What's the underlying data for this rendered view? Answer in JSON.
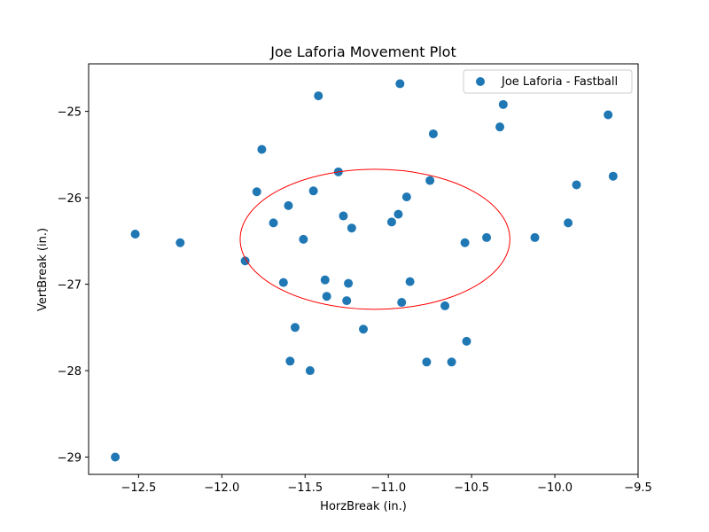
{
  "chart_data": {
    "type": "scatter",
    "title": "Joe Laforia Movement Plot",
    "xlabel": "HorzBreak (in.)",
    "ylabel": "VertBreak (in.)",
    "xlim": [
      -12.8,
      -9.5
    ],
    "ylim": [
      -29.2,
      -24.45
    ],
    "xticks": [
      -12.5,
      -12.0,
      -11.5,
      -11.0,
      -10.5,
      -10.0,
      -9.5
    ],
    "xtick_labels": [
      "−12.5",
      "−12.0",
      "−11.5",
      "−11.0",
      "−10.5",
      "−10.0",
      "−9.5"
    ],
    "yticks": [
      -29,
      -28,
      -27,
      -26,
      -25
    ],
    "ytick_labels": [
      "−29",
      "−28",
      "−27",
      "−26",
      "−25"
    ],
    "grid": false,
    "legend_position": "top-right",
    "series": [
      {
        "name": "Joe Laforia - Fastball",
        "color": "#1f77b4",
        "points": [
          [
            -12.64,
            -29.0
          ],
          [
            -12.52,
            -26.42
          ],
          [
            -12.25,
            -26.52
          ],
          [
            -11.86,
            -26.73
          ],
          [
            -11.79,
            -25.93
          ],
          [
            -11.76,
            -25.44
          ],
          [
            -11.69,
            -26.29
          ],
          [
            -11.63,
            -26.98
          ],
          [
            -11.6,
            -26.09
          ],
          [
            -11.59,
            -27.89
          ],
          [
            -11.56,
            -27.5
          ],
          [
            -11.51,
            -26.48
          ],
          [
            -11.47,
            -28.0
          ],
          [
            -11.45,
            -25.92
          ],
          [
            -11.42,
            -24.82
          ],
          [
            -11.38,
            -26.95
          ],
          [
            -11.37,
            -27.14
          ],
          [
            -11.3,
            -25.7
          ],
          [
            -11.27,
            -26.21
          ],
          [
            -11.25,
            -27.19
          ],
          [
            -11.24,
            -26.99
          ],
          [
            -11.22,
            -26.35
          ],
          [
            -11.15,
            -27.52
          ],
          [
            -10.98,
            -26.28
          ],
          [
            -10.94,
            -26.19
          ],
          [
            -10.93,
            -24.68
          ],
          [
            -10.92,
            -27.21
          ],
          [
            -10.89,
            -25.99
          ],
          [
            -10.87,
            -26.97
          ],
          [
            -10.77,
            -27.9
          ],
          [
            -10.75,
            -25.8
          ],
          [
            -10.73,
            -25.26
          ],
          [
            -10.66,
            -27.25
          ],
          [
            -10.62,
            -27.9
          ],
          [
            -10.54,
            -26.52
          ],
          [
            -10.53,
            -27.66
          ],
          [
            -10.41,
            -26.46
          ],
          [
            -10.33,
            -25.18
          ],
          [
            -10.31,
            -24.92
          ],
          [
            -10.12,
            -26.46
          ],
          [
            -9.92,
            -26.29
          ],
          [
            -9.87,
            -25.85
          ],
          [
            -9.68,
            -25.04
          ],
          [
            -9.65,
            -25.75
          ]
        ]
      }
    ],
    "ellipse": {
      "center": [
        -11.08,
        -26.48
      ],
      "radius_x": 0.81,
      "radius_y": 0.81,
      "color": "#ff0000"
    }
  }
}
